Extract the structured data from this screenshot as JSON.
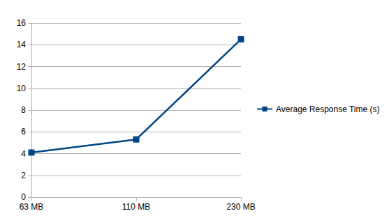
{
  "chart_data": {
    "type": "line",
    "categories": [
      "63 MB",
      "110 MB",
      "230 MB"
    ],
    "series": [
      {
        "name": "Average Response Time (s)",
        "color": "#004586",
        "values": [
          4.1,
          5.3,
          14.5
        ]
      }
    ],
    "ylim": [
      0,
      16
    ],
    "yticks": [
      0,
      2,
      4,
      6,
      8,
      10,
      12,
      14,
      16
    ],
    "grid": true,
    "legend": "right",
    "marker": "square"
  }
}
